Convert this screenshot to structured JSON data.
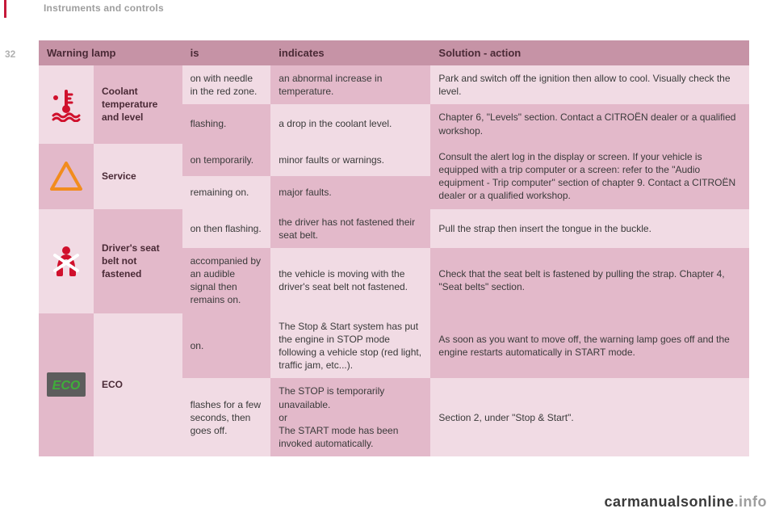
{
  "page": {
    "section_title": "Instruments and controls",
    "page_number": "32",
    "watermark_a": "carmanualsonline",
    "watermark_b": ".info"
  },
  "colors": {
    "header_bg": "#c693a6",
    "row_light": "#f1dbe4",
    "row_dark": "#e3b9ca",
    "text": "#3a3a3a",
    "text_bold": "#4a2a36",
    "accent_red": "#c6193a",
    "icon_orange": "#f28c1e",
    "icon_red": "#d0102c",
    "icon_eco_bg": "#5d5d5d",
    "icon_eco_fg": "#3fae3a"
  },
  "headers": {
    "lamp": "Warning lamp",
    "is": "is",
    "indicates": "indicates",
    "solution": "Solution - action"
  },
  "rows": [
    {
      "icon": "coolant",
      "label": "Coolant temperature and level",
      "sub": [
        {
          "is": "on with needle in the red zone.",
          "indicates": "an abnormal increase in temperature.",
          "solution": "Park and switch off the ignition then allow to cool. Visually check the level."
        },
        {
          "is": "flashing.",
          "indicates": "a drop in the coolant level.",
          "solution": "Chapter 6, \"Levels\" section. Contact a CITROËN dealer or a qualified workshop."
        }
      ]
    },
    {
      "icon": "service",
      "label": "Service",
      "sub": [
        {
          "is": "on temporarily.",
          "indicates": "minor faults or warnings.",
          "solution": "Consult the alert log in the display or screen. If your vehicle is equipped with a trip computer or a screen: refer to the \"Audio equipment - Trip computer\" section of chapter 9. Contact a CITROËN dealer or a qualified workshop."
        },
        {
          "is": "remaining on.",
          "indicates": "major faults.",
          "solution": ""
        }
      ]
    },
    {
      "icon": "seatbelt",
      "label": "Driver's seat belt not fastened",
      "sub": [
        {
          "is": "on then flashing.",
          "indicates": "the driver has not fastened their seat belt.",
          "solution": "Pull the strap then insert the tongue in the buckle."
        },
        {
          "is": "accompanied by an audible signal then remains on.",
          "indicates": "the vehicle is moving with the driver's seat belt not fastened.",
          "solution": "Check that the seat belt is fastened by pulling the strap. Chapter 4, \"Seat belts\" section."
        }
      ]
    },
    {
      "icon": "eco",
      "label": "ECO",
      "sub": [
        {
          "is": "on.",
          "indicates": "The Stop & Start system has put the engine in STOP mode following a vehicle stop (red light, traffic jam, etc...).",
          "solution": "As soon as you want to move off, the warning lamp goes off and the engine restarts automatically in START mode."
        },
        {
          "is": "flashes for a few seconds, then goes off.",
          "indicates": "The STOP is temporarily unavailable.\nor\nThe START mode has been invoked automatically.",
          "solution": "Section 2, under \"Stop & Start\"."
        }
      ]
    }
  ]
}
